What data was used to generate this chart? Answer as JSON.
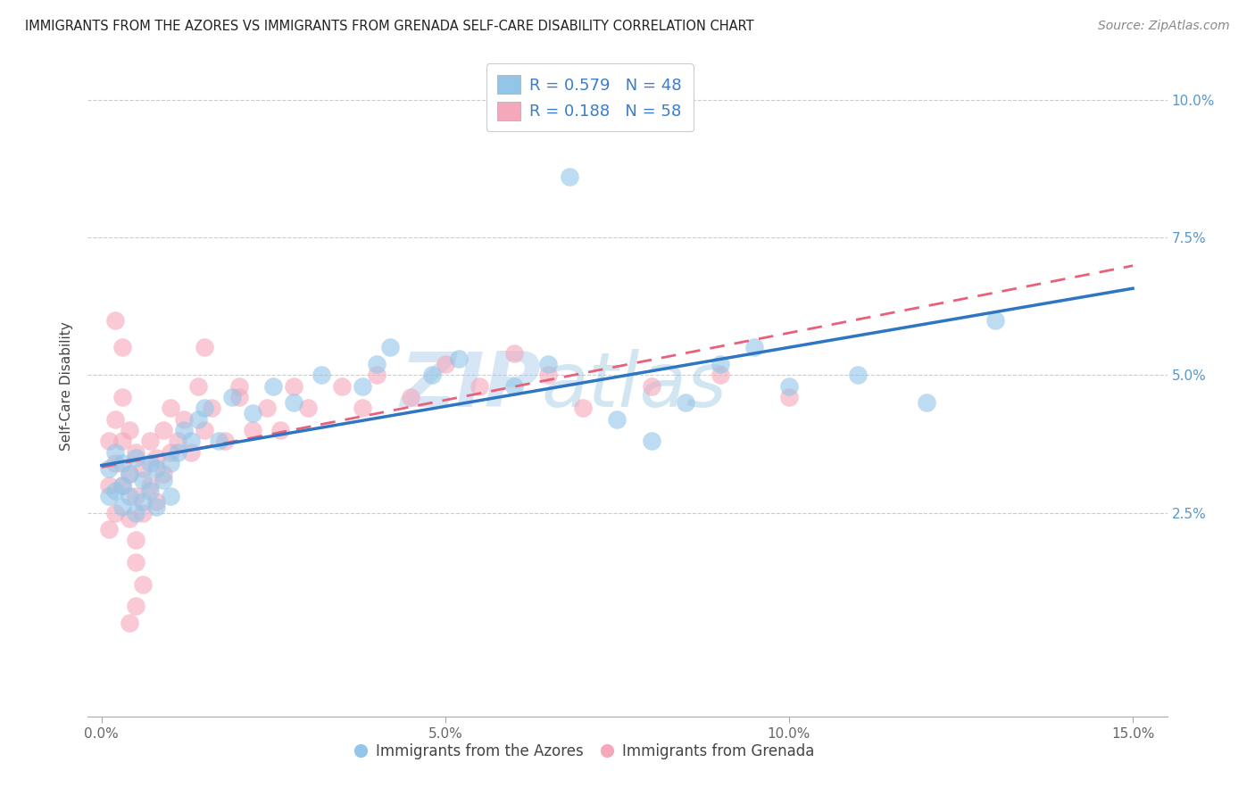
{
  "title": "IMMIGRANTS FROM THE AZORES VS IMMIGRANTS FROM GRENADA SELF-CARE DISABILITY CORRELATION CHART",
  "source": "Source: ZipAtlas.com",
  "ylabel": "Self-Care Disability",
  "y_ticks": [
    "2.5%",
    "5.0%",
    "7.5%",
    "10.0%"
  ],
  "y_tick_vals": [
    0.025,
    0.05,
    0.075,
    0.1
  ],
  "x_tick_vals": [
    0.0,
    0.05,
    0.1,
    0.15
  ],
  "x_tick_labels": [
    "0.0%",
    "5.0%",
    "10.0%",
    "15.0%"
  ],
  "xlim": [
    -0.002,
    0.155
  ],
  "ylim": [
    -0.012,
    0.108
  ],
  "legend_entry1": "R = 0.579   N = 48",
  "legend_entry2": "R = 0.188   N = 58",
  "legend_label1": "Immigrants from the Azores",
  "legend_label2": "Immigrants from Grenada",
  "color_azores": "#92C5E8",
  "color_grenada": "#F5A8BB",
  "line_color_azores": "#2E75C3",
  "line_color_grenada": "#E8607A",
  "watermark_zip": "ZIP",
  "watermark_atlas": "atlas",
  "watermark_color": "#C8DDEF",
  "background_color": "#FFFFFF",
  "azores_x": [
    0.001,
    0.001,
    0.002,
    0.002,
    0.003,
    0.003,
    0.003,
    0.004,
    0.004,
    0.005,
    0.005,
    0.006,
    0.006,
    0.007,
    0.007,
    0.008,
    0.008,
    0.009,
    0.01,
    0.01,
    0.011,
    0.012,
    0.013,
    0.014,
    0.015,
    0.017,
    0.019,
    0.022,
    0.025,
    0.028,
    0.032,
    0.038,
    0.04,
    0.042,
    0.048,
    0.052,
    0.06,
    0.065,
    0.068,
    0.075,
    0.08,
    0.085,
    0.09,
    0.095,
    0.1,
    0.11,
    0.12,
    0.13
  ],
  "azores_y": [
    0.033,
    0.028,
    0.036,
    0.029,
    0.034,
    0.03,
    0.026,
    0.032,
    0.028,
    0.035,
    0.025,
    0.031,
    0.027,
    0.034,
    0.029,
    0.033,
    0.026,
    0.031,
    0.034,
    0.028,
    0.036,
    0.04,
    0.038,
    0.042,
    0.044,
    0.038,
    0.046,
    0.043,
    0.048,
    0.045,
    0.05,
    0.048,
    0.052,
    0.055,
    0.05,
    0.053,
    0.048,
    0.052,
    0.086,
    0.042,
    0.038,
    0.045,
    0.052,
    0.055,
    0.048,
    0.05,
    0.045,
    0.06
  ],
  "grenada_x": [
    0.001,
    0.001,
    0.001,
    0.002,
    0.002,
    0.002,
    0.003,
    0.003,
    0.003,
    0.004,
    0.004,
    0.004,
    0.005,
    0.005,
    0.005,
    0.006,
    0.006,
    0.007,
    0.007,
    0.008,
    0.008,
    0.009,
    0.009,
    0.01,
    0.01,
    0.011,
    0.012,
    0.013,
    0.014,
    0.015,
    0.016,
    0.018,
    0.02,
    0.022,
    0.024,
    0.026,
    0.028,
    0.03,
    0.035,
    0.038,
    0.04,
    0.045,
    0.05,
    0.055,
    0.06,
    0.065,
    0.07,
    0.08,
    0.09,
    0.1,
    0.005,
    0.006,
    0.015,
    0.02,
    0.002,
    0.003,
    0.004,
    0.005
  ],
  "grenada_y": [
    0.038,
    0.03,
    0.022,
    0.042,
    0.034,
    0.025,
    0.046,
    0.038,
    0.03,
    0.04,
    0.032,
    0.024,
    0.036,
    0.028,
    0.02,
    0.033,
    0.025,
    0.038,
    0.03,
    0.035,
    0.027,
    0.04,
    0.032,
    0.044,
    0.036,
    0.038,
    0.042,
    0.036,
    0.048,
    0.04,
    0.044,
    0.038,
    0.046,
    0.04,
    0.044,
    0.04,
    0.048,
    0.044,
    0.048,
    0.044,
    0.05,
    0.046,
    0.052,
    0.048,
    0.054,
    0.05,
    0.044,
    0.048,
    0.05,
    0.046,
    0.016,
    0.012,
    0.055,
    0.048,
    0.06,
    0.055,
    0.005,
    0.008
  ]
}
